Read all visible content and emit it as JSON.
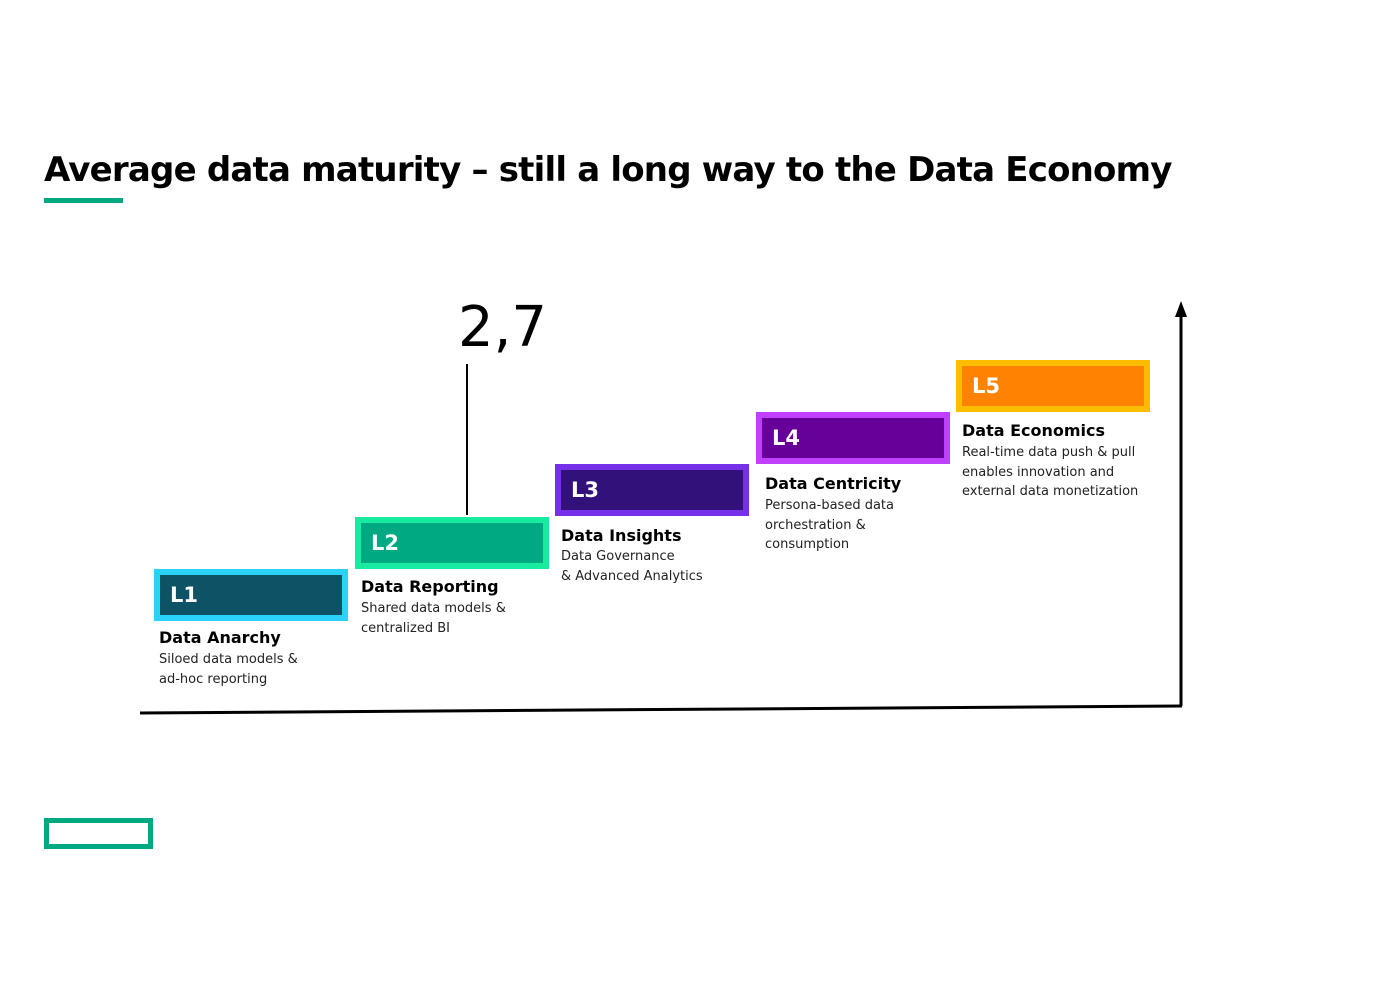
{
  "title": "Average data maturity – still a long way to the Data Economy",
  "marker": {
    "value_label": "2,7",
    "value": 2.7
  },
  "levels": [
    {
      "code": "L1",
      "name": "Data Anarchy",
      "desc_lines": [
        "Siloed data models &",
        "ad-hoc reporting"
      ],
      "fill": "#0d5265",
      "border": "#2ad2f9"
    },
    {
      "code": "L2",
      "name": "Data Reporting",
      "desc_lines": [
        "Shared data models &",
        "centralized BI"
      ],
      "fill": "#01a982",
      "border": "#17eba0"
    },
    {
      "code": "L3",
      "name": "Data Insights",
      "desc_lines": [
        "Data Governance",
        "& Advanced Analytics"
      ],
      "fill": "#32127a",
      "border": "#7630ea"
    },
    {
      "code": "L4",
      "name": "Data Centricity",
      "desc_lines": [
        "Persona-based data",
        "orchestration &",
        "consumption"
      ],
      "fill": "#660099",
      "border": "#c140ff"
    },
    {
      "code": "L5",
      "name": "Data Economics",
      "desc_lines": [
        "Real-time data push & pull",
        "enables innovation and",
        "external data monetization"
      ],
      "fill": "#ff8300",
      "border": "#febc00"
    }
  ],
  "brand_color": "#01a982"
}
